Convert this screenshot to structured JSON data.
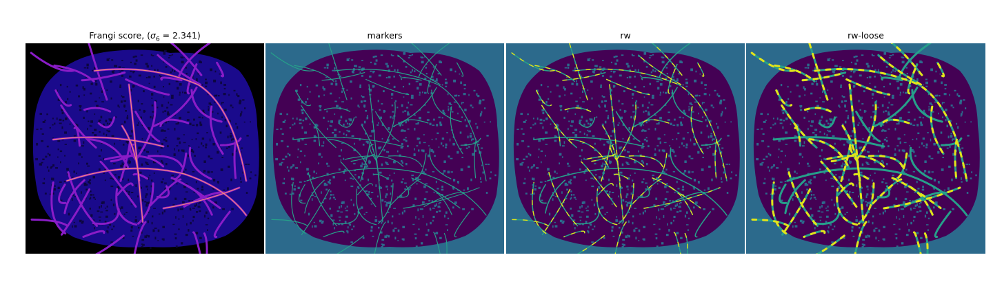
{
  "panels": [
    {
      "id": "frangi",
      "title_prefix": "Frangi score, (",
      "title_var": "σ",
      "title_sub": "6",
      "title_suffix": " = 2.341)",
      "colormap": "magma"
    },
    {
      "id": "markers",
      "title": "markers",
      "colormap": "viridis"
    },
    {
      "id": "rw",
      "title": "rw",
      "colormap": "viridis"
    },
    {
      "id": "rw-loose",
      "title": "rw-loose",
      "colormap": "viridis"
    }
  ],
  "colors": {
    "frangi_bg": "#000000",
    "frangi_tissue": "#1a0a8c",
    "frangi_vessel": "#8a1cc7",
    "frangi_vessel_hot": "#f58a78",
    "viridis_bg": "#2c6a8c",
    "viridis_dark": "#440154",
    "viridis_mid": "#26a08a",
    "viridis_bright": "#e4e419"
  }
}
